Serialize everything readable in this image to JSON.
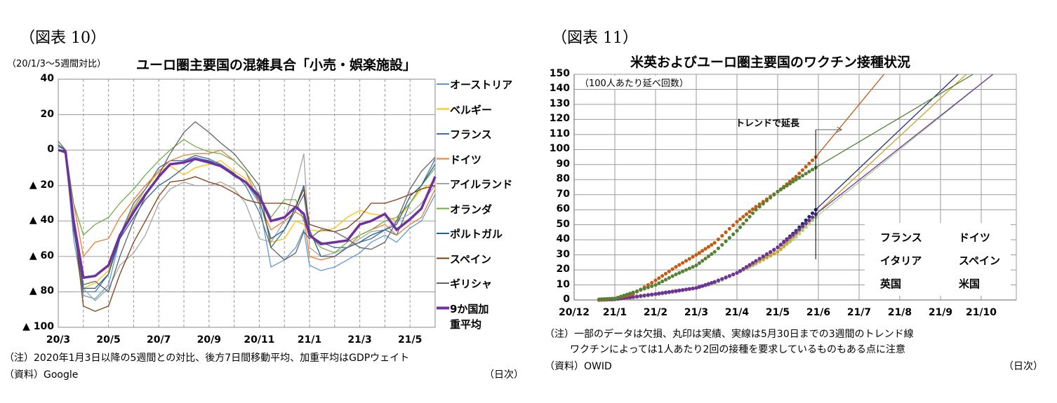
{
  "figures": [
    {
      "label": "（図表 10）",
      "notes": [
        "（注）2020年1月3日以降の5週間との対比、後方7日間移動平均、加重平均はGDPウェイト",
        "（資料）Google"
      ],
      "x_unit": "（日次）"
    },
    {
      "label": "（図表 11）",
      "notes": [
        "（注）一部のデータは欠損、丸印は実績、実線は5月30日までの3週間のトレンド線",
        "ワクチンによっては1人あたり2回の接種を要求しているものもある点に注意",
        "（資料）OWID"
      ],
      "x_unit": "（日次）"
    }
  ],
  "chart_data": [
    {
      "type": "line",
      "title": "ユーロ圏主要国の混雑具合「小売・娯楽施設」",
      "ylabel": "（20/1/3～5週間対比）",
      "ylim": [
        -100,
        40
      ],
      "xlim": [
        "2020-03-01",
        "2021-06-01"
      ],
      "grid": true,
      "legend": "right",
      "yticks": [
        {
          "v": 40,
          "label": "40"
        },
        {
          "v": 20,
          "label": "20"
        },
        {
          "v": 0,
          "label": "0"
        },
        {
          "v": -20,
          "label": "▲ 20"
        },
        {
          "v": -40,
          "label": "▲ 40"
        },
        {
          "v": -60,
          "label": "▲ 60"
        },
        {
          "v": -80,
          "label": "▲ 80"
        },
        {
          "v": -100,
          "label": "▲ 100"
        }
      ],
      "xticks": [
        {
          "d": "2020-03-01",
          "label": "20/3"
        },
        {
          "d": "2020-05-01",
          "label": "20/5"
        },
        {
          "d": "2020-07-01",
          "label": "20/7"
        },
        {
          "d": "2020-09-01",
          "label": "20/9"
        },
        {
          "d": "2020-11-01",
          "label": "20/11"
        },
        {
          "d": "2021-01-01",
          "label": "21/1"
        },
        {
          "d": "2021-03-01",
          "label": "21/3"
        },
        {
          "d": "2021-05-01",
          "label": "21/5"
        }
      ],
      "x": [
        "2020-03-01",
        "2020-03-10",
        "2020-03-20",
        "2020-04-01",
        "2020-04-15",
        "2020-05-01",
        "2020-05-15",
        "2020-06-01",
        "2020-06-15",
        "2020-07-01",
        "2020-07-15",
        "2020-08-01",
        "2020-08-15",
        "2020-09-01",
        "2020-09-15",
        "2020-10-01",
        "2020-10-15",
        "2020-11-01",
        "2020-11-15",
        "2020-12-01",
        "2020-12-15",
        "2020-12-25",
        "2021-01-01",
        "2021-01-15",
        "2021-02-01",
        "2021-02-15",
        "2021-03-01",
        "2021-03-15",
        "2021-04-01",
        "2021-04-15",
        "2021-05-01",
        "2021-05-15",
        "2021-06-01"
      ],
      "series": [
        {
          "name": "オーストリア",
          "color": "#5b9bd5",
          "values": [
            0,
            -2,
            -50,
            -82,
            -84,
            -76,
            -50,
            -33,
            -22,
            -12,
            -6,
            -6,
            -4,
            -6,
            -8,
            -15,
            -18,
            -30,
            -66,
            -62,
            -55,
            -45,
            -65,
            -68,
            -66,
            -62,
            -58,
            -52,
            -48,
            -52,
            -44,
            -40,
            -25
          ]
        },
        {
          "name": "ベルギー",
          "color": "#ffc000",
          "values": [
            0,
            0,
            -40,
            -78,
            -75,
            -68,
            -48,
            -32,
            -22,
            -12,
            -9,
            -14,
            -10,
            -8,
            -6,
            -12,
            -16,
            -28,
            -52,
            -50,
            -40,
            -42,
            -45,
            -46,
            -44,
            -38,
            -34,
            -36,
            -37,
            -40,
            -30,
            -22,
            -18
          ]
        },
        {
          "name": "フランス",
          "color": "#44719a",
          "values": [
            2,
            0,
            -42,
            -80,
            -80,
            -70,
            -48,
            -30,
            -22,
            -10,
            -6,
            -6,
            -3,
            -5,
            -8,
            -13,
            -20,
            -35,
            -55,
            -45,
            -34,
            -25,
            -48,
            -52,
            -55,
            -55,
            -52,
            -50,
            -45,
            -48,
            -30,
            -20,
            -5
          ]
        },
        {
          "name": "ドイツ",
          "color": "#ed7d31",
          "values": [
            0,
            0,
            -30,
            -60,
            -52,
            -50,
            -38,
            -28,
            -20,
            -12,
            -6,
            -3,
            -2,
            -2,
            0,
            -6,
            -12,
            -30,
            -45,
            -40,
            -35,
            -38,
            -60,
            -62,
            -60,
            -55,
            -48,
            -45,
            -42,
            -48,
            -42,
            -38,
            -22
          ]
        },
        {
          "name": "アイルランド",
          "color": "#a5a5a5",
          "values": [
            3,
            0,
            -40,
            -78,
            -85,
            -78,
            -65,
            -58,
            -48,
            -30,
            -22,
            -18,
            -20,
            -20,
            -18,
            -22,
            -30,
            -50,
            -52,
            -40,
            -20,
            -2,
            -55,
            -60,
            -58,
            -55,
            -50,
            -46,
            -45,
            -40,
            -36,
            -30,
            -20
          ]
        },
        {
          "name": "オランダ",
          "color": "#70ad47",
          "values": [
            3,
            0,
            -30,
            -48,
            -42,
            -38,
            -30,
            -22,
            -14,
            -6,
            0,
            6,
            2,
            -1,
            -2,
            -6,
            -12,
            -25,
            -38,
            -28,
            -28,
            -40,
            -48,
            -55,
            -58,
            -52,
            -48,
            -45,
            -40,
            -38,
            -30,
            -20,
            -10
          ]
        },
        {
          "name": "ポルトガル",
          "color": "#255e91",
          "values": [
            3,
            0,
            -45,
            -78,
            -78,
            -70,
            -50,
            -38,
            -28,
            -20,
            -16,
            -10,
            -5,
            -6,
            -9,
            -14,
            -18,
            -28,
            -50,
            -45,
            -32,
            -20,
            -45,
            -60,
            -60,
            -55,
            -52,
            -48,
            -45,
            -42,
            -26,
            -20,
            -8
          ]
        },
        {
          "name": "スペイン",
          "color": "#843c0c",
          "values": [
            0,
            0,
            -40,
            -88,
            -91,
            -88,
            -70,
            -52,
            -40,
            -26,
            -18,
            -17,
            -15,
            -18,
            -20,
            -24,
            -28,
            -30,
            -30,
            -30,
            -32,
            -22,
            -42,
            -44,
            -46,
            -44,
            -38,
            -30,
            -30,
            -28,
            -25,
            -22,
            -20
          ]
        },
        {
          "name": "ギリシャ",
          "color": "#636363",
          "values": [
            5,
            0,
            -45,
            -76,
            -74,
            -80,
            -60,
            -40,
            -26,
            -14,
            -2,
            10,
            16,
            10,
            4,
            -2,
            -10,
            -20,
            -55,
            -62,
            -58,
            -46,
            -50,
            -45,
            -46,
            -50,
            -55,
            -56,
            -52,
            -40,
            -22,
            -12,
            -4
          ]
        },
        {
          "name": "9か国加重平均",
          "color": "#7030a0",
          "bold": true,
          "values": [
            0,
            -1,
            -40,
            -72,
            -71,
            -65,
            -48,
            -35,
            -25,
            -15,
            -8,
            -7,
            -5,
            -7,
            -9,
            -14,
            -18,
            -26,
            -40,
            -38,
            -32,
            -36,
            -48,
            -53,
            -52,
            -51,
            -42,
            -40,
            -36,
            -45,
            -39,
            -33,
            -15
          ]
        }
      ]
    },
    {
      "type": "scatter+line",
      "title": "米英およびユーロ圏主要国のワクチン接種状況",
      "ylabel": "（100人あたり延べ回数）",
      "ylim": [
        0,
        150
      ],
      "xlim": [
        "2020-12-01",
        "2021-10-24"
      ],
      "grid": true,
      "legend": "bottom-right",
      "annotation": "トレンドで延長",
      "trend_start": "2021-05-30",
      "yticks": [
        0,
        10,
        20,
        30,
        40,
        50,
        60,
        70,
        80,
        90,
        100,
        110,
        120,
        130,
        140,
        150
      ],
      "xticks": [
        {
          "d": "2020-12-01",
          "label": "20/12"
        },
        {
          "d": "2021-01-01",
          "label": "21/1"
        },
        {
          "d": "2021-02-01",
          "label": "21/2"
        },
        {
          "d": "2021-03-01",
          "label": "21/3"
        },
        {
          "d": "2021-04-01",
          "label": "21/4"
        },
        {
          "d": "2021-05-01",
          "label": "21/5"
        },
        {
          "d": "2021-06-01",
          "label": "21/6"
        },
        {
          "d": "2021-07-01",
          "label": "21/7"
        },
        {
          "d": "2021-08-01",
          "label": "21/8"
        },
        {
          "d": "2021-09-01",
          "label": "21/9"
        },
        {
          "d": "2021-10-01",
          "label": "21/10"
        }
      ],
      "x": [
        "2020-12-20",
        "2021-01-01",
        "2021-01-15",
        "2021-02-01",
        "2021-02-15",
        "2021-03-01",
        "2021-03-15",
        "2021-04-01",
        "2021-04-15",
        "2021-05-01",
        "2021-05-15",
        "2021-05-30"
      ],
      "series": [
        {
          "name": "フランス",
          "color": "#a9d18e",
          "values": [
            0,
            0.3,
            1.5,
            3.5,
            5.5,
            8,
            11,
            18,
            24,
            32,
            42,
            55
          ],
          "trend_end": [
            "2021-10-10",
            150
          ]
        },
        {
          "name": "ドイツ",
          "color": "#1f2d6b",
          "values": [
            0,
            0.5,
            2,
            4,
            6,
            8,
            12,
            18,
            25,
            35,
            46,
            60
          ],
          "trend_end": [
            "2021-09-14",
            150
          ]
        },
        {
          "name": "イタリア",
          "color": "#c9a227",
          "values": [
            0,
            0.5,
            2,
            4,
            6,
            8,
            12,
            18,
            25,
            32,
            44,
            57
          ],
          "trend_end": [
            "2021-09-20",
            150
          ]
        },
        {
          "name": "スペイン",
          "color": "#7030a0",
          "values": [
            0,
            0.5,
            2,
            4,
            6,
            8,
            12,
            18,
            26,
            35,
            45,
            57
          ],
          "trend_end": [
            "2021-10-10",
            150
          ]
        },
        {
          "name": "英国",
          "color": "#c55a11",
          "values": [
            0,
            1,
            4,
            13,
            22,
            30,
            38,
            52,
            62,
            72,
            82,
            95
          ],
          "trend_end": [
            "2021-07-20",
            150
          ]
        },
        {
          "name": "米国",
          "color": "#548235",
          "values": [
            0.5,
            1,
            5,
            10,
            17,
            23,
            32,
            46,
            60,
            72,
            80,
            88
          ],
          "trend_end": [
            "2021-09-25",
            150
          ]
        }
      ]
    }
  ]
}
